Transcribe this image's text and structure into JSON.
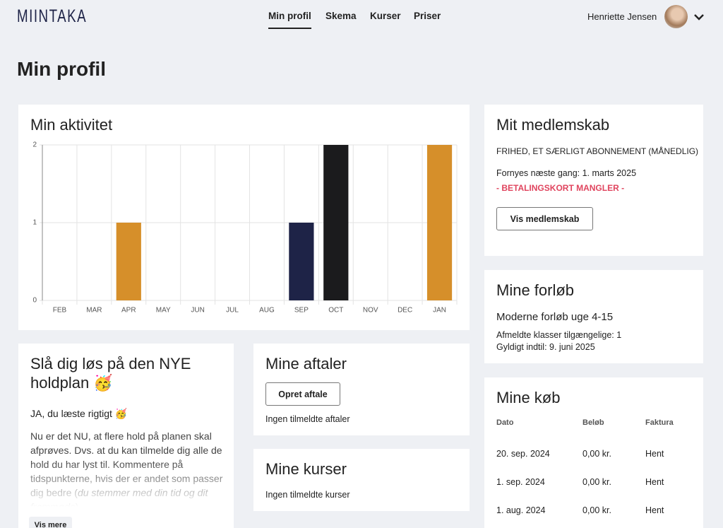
{
  "header": {
    "logo": "MIINTAKA",
    "nav": [
      "Min profil",
      "Skema",
      "Kurser",
      "Priser"
    ],
    "user": "Henriette Jensen"
  },
  "page_title": "Min profil",
  "activity": {
    "title": "Min aktivitet"
  },
  "chart_data": {
    "type": "bar",
    "categories": [
      "FEB",
      "MAR",
      "APR",
      "MAY",
      "JUN",
      "JUL",
      "AUG",
      "SEP",
      "OCT",
      "NOV",
      "DEC",
      "JAN"
    ],
    "values": [
      0,
      0,
      1,
      0,
      0,
      0,
      0,
      1,
      2,
      0,
      0,
      2
    ],
    "colors": [
      "#d68f2a",
      "#d68f2a",
      "#d68f2a",
      "#d68f2a",
      "#d68f2a",
      "#d68f2a",
      "#d68f2a",
      "#1e2347",
      "#1b1b1d",
      "#d68f2a",
      "#d68f2a",
      "#d68f2a"
    ],
    "ylim": [
      0,
      2
    ],
    "yticks": [
      0,
      1,
      2
    ],
    "grid": true
  },
  "membership": {
    "title": "Mit medlemskab",
    "plan": "FRIHED, ET SÆRLIGT ABONNEMENT (MÅNEDLIG)",
    "renewal": "Fornyes næste gang: 1. marts 2025",
    "warning": "- BETALINGSKORT MANGLER -",
    "button": "Vis medlemskab"
  },
  "courses_progress": {
    "title": "Mine forløb",
    "name": "Moderne forløb uge 4-15",
    "available": "Afmeldte klasser tilgængelige: 1",
    "valid": "Gyldigt indtil: 9. juni 2025"
  },
  "purchases": {
    "title": "Mine køb",
    "columns": [
      "Dato",
      "Beløb",
      "Faktura"
    ],
    "rows": [
      [
        "20. sep. 2024",
        "0,00 kr.",
        "Hent"
      ],
      [
        "1. sep. 2024",
        "0,00 kr.",
        "Hent"
      ],
      [
        "1. aug. 2024",
        "0,00 kr.",
        "Hent"
      ]
    ]
  },
  "news": {
    "title": "Slå dig løs på den NYE holdplan 🥳",
    "lead": "JA, du læste rigtigt 🥳",
    "body": "Nu er det NU, at flere hold på planen skal afprøves. Dvs. at du kan tilmelde dig alle de hold du har lyst til. Kommentere på tidspunkterne, hvis der er andet som passer dig bedre (",
    "body_italic": "du stemmer med din tid og dit fremmøde",
    "body_end": ")",
    "button": "Vis mere"
  },
  "appointments": {
    "title": "Mine aftaler",
    "button": "Opret aftale",
    "empty": "Ingen tilmeldte aftaler"
  },
  "my_courses": {
    "title": "Mine kurser",
    "empty": "Ingen tilmeldte kurser"
  }
}
